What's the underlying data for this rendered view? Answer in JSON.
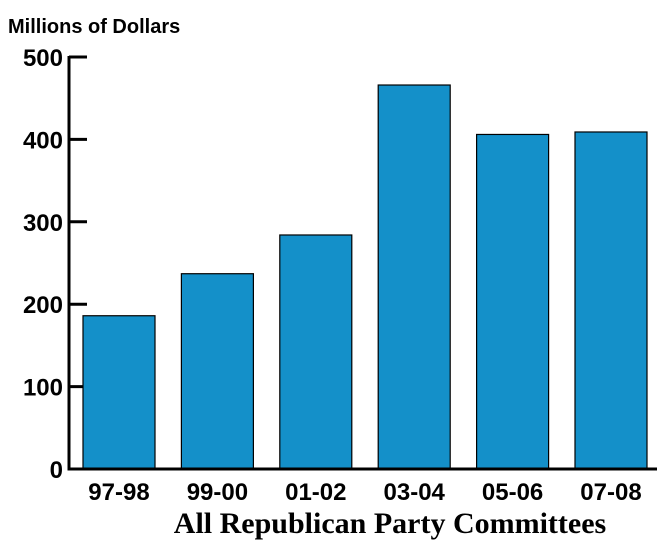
{
  "chart_data": {
    "type": "bar",
    "title": "All Republican Party Committees",
    "ylabel": "Millions of Dollars",
    "xlabel": "",
    "categories": [
      "97-98",
      "99-00",
      "01-02",
      "03-04",
      "05-06",
      "07-08"
    ],
    "values": [
      186,
      237,
      284,
      466,
      406,
      409
    ],
    "ylim": [
      0,
      500
    ],
    "yticks": [
      0,
      100,
      200,
      300,
      400,
      500
    ],
    "grid": false,
    "legend": "none",
    "colors": {
      "bar": "#1490C9",
      "bar_stroke": "#000000",
      "axis": "#000000"
    }
  }
}
